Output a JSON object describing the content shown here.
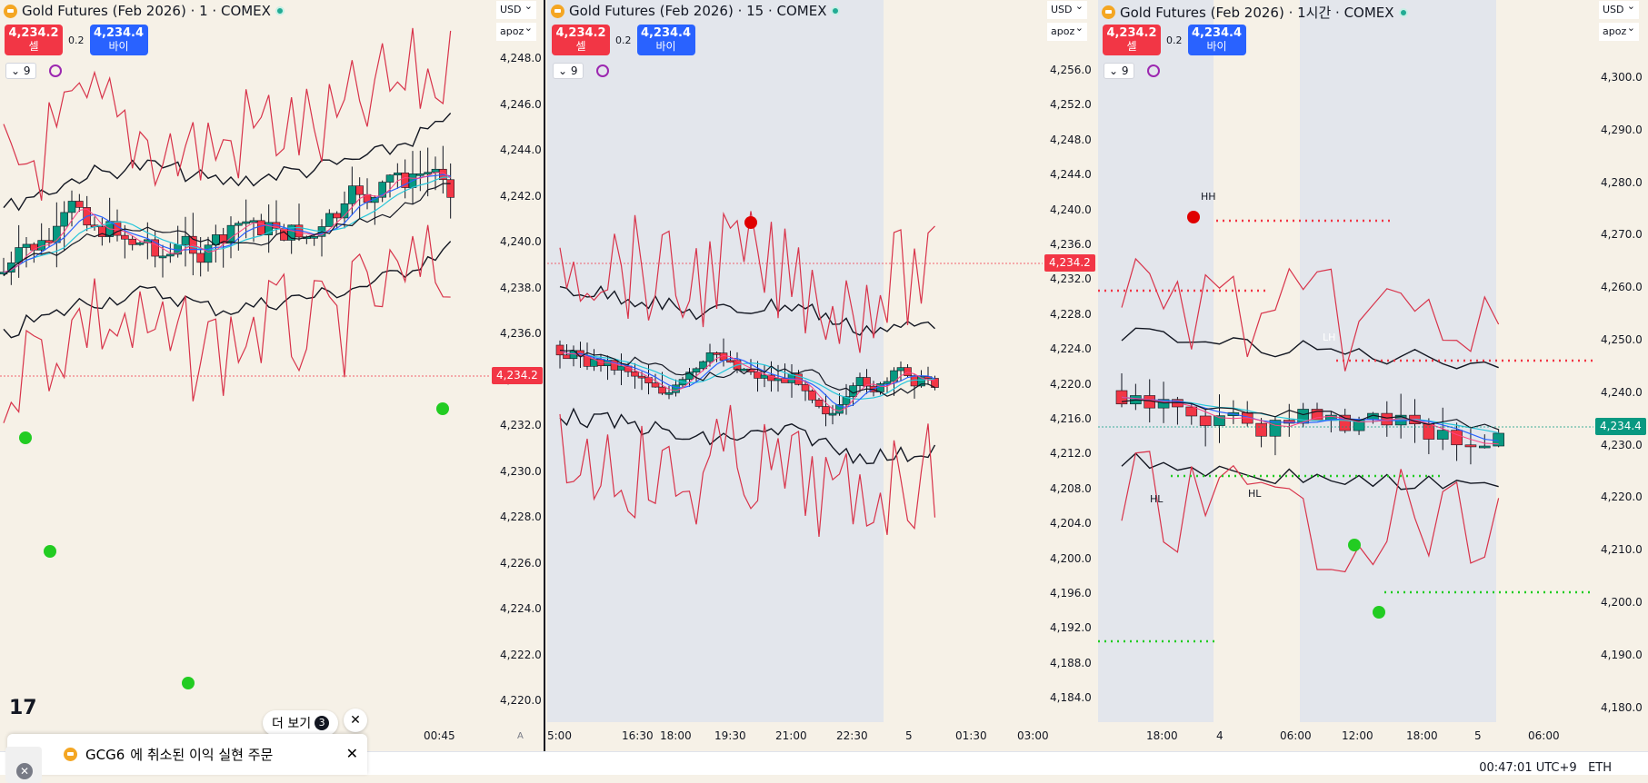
{
  "panels": [
    {
      "title": "Gold Futures (Feb 2026) · 1 · COMEX",
      "sell_price": "4,234.2",
      "sell_label": "셀",
      "spread": "0.2",
      "buy_price": "4,234.4",
      "buy_label": "바이",
      "indicator_count": "9",
      "currency": "USD",
      "indicator_name": "apoz",
      "y_ticks": [
        "4,248.0",
        "4,246.0",
        "4,244.0",
        "4,242.0",
        "4,240.0",
        "4,238.0",
        "4,236.0",
        "4,234.0",
        "4,232.0",
        "4,230.0",
        "4,228.0",
        "4,226.0",
        "4,224.0",
        "4,222.0",
        "4,220.0"
      ],
      "price_label": "4,234.2",
      "x_ticks": [
        "00:45"
      ],
      "axis_mode": "A"
    },
    {
      "title": "Gold Futures (Feb 2026) · 15 · COMEX",
      "sell_price": "4,234.2",
      "sell_label": "셀",
      "spread": "0.2",
      "buy_price": "4,234.4",
      "buy_label": "바이",
      "indicator_count": "9",
      "currency": "USD",
      "indicator_name": "apoz",
      "y_ticks": [
        "4,256.0",
        "4,252.0",
        "4,248.0",
        "4,244.0",
        "4,240.0",
        "4,236.0",
        "4,232.0",
        "4,228.0",
        "4,224.0",
        "4,220.0",
        "4,216.0",
        "4,212.0",
        "4,208.0",
        "4,204.0",
        "4,200.0",
        "4,196.0",
        "4,192.0",
        "4,188.0",
        "4,184.0"
      ],
      "price_label": "4,234.2",
      "x_ticks": [
        "5:00",
        "16:30",
        "18:00",
        "19:30",
        "21:00",
        "22:30",
        "5",
        "01:30",
        "03:00"
      ]
    },
    {
      "title": "Gold Futures (Feb 2026) · 1시간 · COMEX",
      "sell_price": "4,234.2",
      "sell_label": "셀",
      "spread": "0.2",
      "buy_price": "4,234.4",
      "buy_label": "바이",
      "indicator_count": "9",
      "currency": "USD",
      "indicator_name": "apoz",
      "y_ticks": [
        "4,300.0",
        "4,290.0",
        "4,280.0",
        "4,270.0",
        "4,260.0",
        "4,250.0",
        "4,240.0",
        "4,230.0",
        "4,220.0",
        "4,210.0",
        "4,200.0",
        "4,190.0",
        "4,180.0"
      ],
      "price_label": "4,234.4",
      "x_ticks": [
        "18:00",
        "4",
        "06:00",
        "12:00",
        "18:00",
        "5",
        "06:00"
      ],
      "annotations": {
        "hh": "HH",
        "hl1": "HL",
        "hl2": "HL",
        "lh": "LH"
      }
    }
  ],
  "bottom": {
    "more_label": "더 보기",
    "more_count": "3",
    "notif_symbol": "GCG6",
    "notif_text": "에 취소된 이익 실현 주문",
    "clock": "00:47:01 UTC+9",
    "session": "ETH"
  },
  "colors": {
    "up": "#089981",
    "down": "#f23645",
    "band": "#d8334a",
    "ma1": "#2962ff",
    "ma2": "#26c6da",
    "ma3": "#ff4081"
  }
}
